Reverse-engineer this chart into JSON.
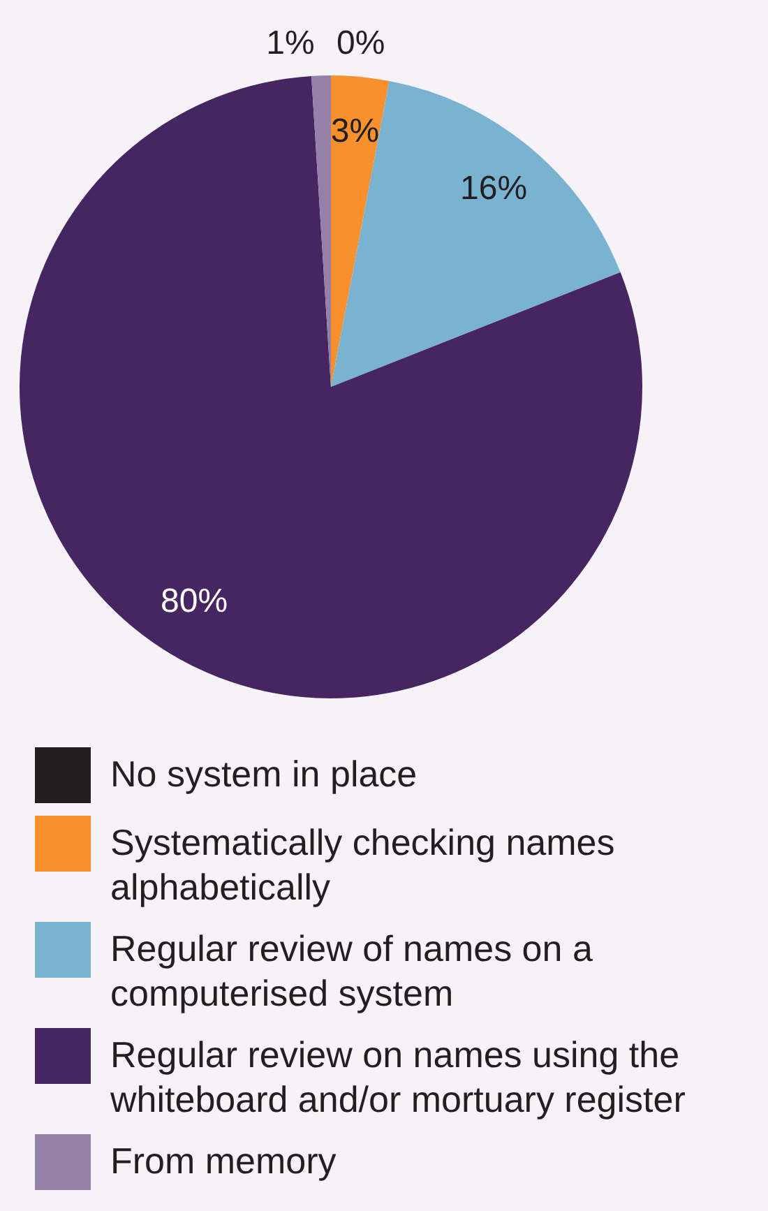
{
  "chart_data": {
    "type": "pie",
    "categories": [
      "No system in place",
      "Systematically checking names alphabetically",
      "Regular review of names on a computerised system",
      "Regular review on names using the whiteboard and/or mortuary register",
      "From memory"
    ],
    "values": [
      0,
      3,
      16,
      80,
      1
    ],
    "colors": [
      "#231f20",
      "#f7902d",
      "#7ab3d1",
      "#472563",
      "#9480a8"
    ],
    "value_labels": [
      "0%",
      "3%",
      "16%",
      "80%",
      "1%"
    ],
    "legend": "bottom"
  }
}
